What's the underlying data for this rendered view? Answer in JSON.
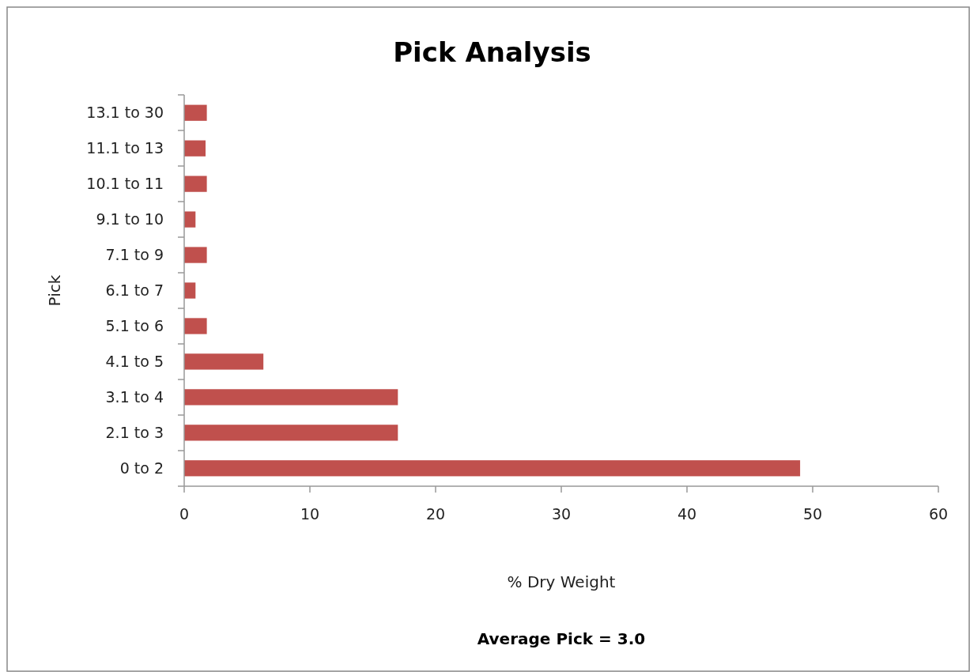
{
  "chart_data": {
    "type": "bar",
    "orientation": "horizontal",
    "title": "Pick Analysis",
    "xlabel": "% Dry Weight",
    "ylabel": "Pick",
    "annotations": [
      "Average Pick = 3.0"
    ],
    "categories": [
      "13.1 to 30",
      "11.1 to 13",
      "10.1 to 11",
      "9.1 to 10",
      "7.1 to 9",
      "6.1 to 7",
      "5.1 to 6",
      "4.1 to 5",
      "3.1 to 4",
      "2.1 to 3",
      "0 to 2"
    ],
    "values": [
      1.8,
      1.7,
      1.8,
      0.9,
      1.8,
      0.9,
      1.8,
      6.3,
      17,
      17,
      49
    ],
    "color": "#c0504d",
    "xlim": [
      0,
      60
    ],
    "xticks": [
      0,
      10,
      20,
      30,
      40,
      50,
      60
    ],
    "grid": false
  }
}
